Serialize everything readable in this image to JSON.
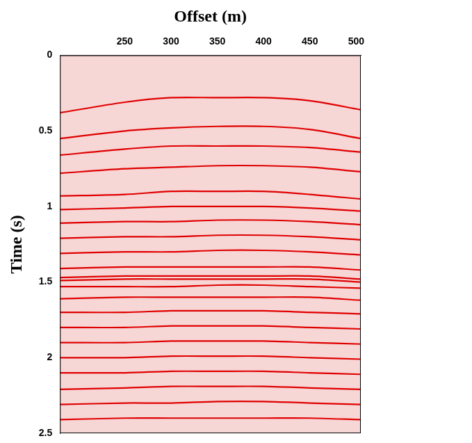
{
  "chart_data": {
    "type": "line",
    "x_label": "Offset (m)",
    "y_label": "Time (s)",
    "x": [
      180,
      250,
      300,
      350,
      400,
      450,
      505
    ],
    "xlim": [
      180,
      505
    ],
    "xticks": [
      250,
      300,
      350,
      400,
      450,
      500
    ],
    "ylim": [
      0,
      2.5
    ],
    "yticks": [
      0,
      0.5,
      1,
      1.5,
      2,
      2.5
    ],
    "color": "#e00000",
    "grid": false,
    "series": [
      {
        "values": [
          0.38,
          0.31,
          0.28,
          0.28,
          0.28,
          0.3,
          0.36
        ]
      },
      {
        "values": [
          0.55,
          0.5,
          0.48,
          0.47,
          0.47,
          0.49,
          0.55
        ]
      },
      {
        "values": [
          0.66,
          0.62,
          0.6,
          0.6,
          0.6,
          0.61,
          0.64
        ]
      },
      {
        "values": [
          0.78,
          0.75,
          0.74,
          0.73,
          0.73,
          0.74,
          0.77
        ]
      },
      {
        "values": [
          0.93,
          0.92,
          0.9,
          0.9,
          0.9,
          0.92,
          0.95
        ]
      },
      {
        "values": [
          1.02,
          1.01,
          1.0,
          1.0,
          1.0,
          1.01,
          1.03
        ]
      },
      {
        "values": [
          1.11,
          1.1,
          1.1,
          1.09,
          1.09,
          1.1,
          1.12
        ]
      },
      {
        "values": [
          1.21,
          1.2,
          1.2,
          1.19,
          1.19,
          1.2,
          1.22
        ]
      },
      {
        "values": [
          1.31,
          1.3,
          1.3,
          1.29,
          1.29,
          1.3,
          1.32
        ]
      },
      {
        "values": [
          1.41,
          1.4,
          1.4,
          1.4,
          1.4,
          1.4,
          1.42
        ]
      },
      {
        "values": [
          1.47,
          1.46,
          1.46,
          1.46,
          1.46,
          1.46,
          1.48
        ]
      },
      {
        "values": [
          1.49,
          1.48,
          1.48,
          1.48,
          1.48,
          1.48,
          1.5
        ]
      },
      {
        "values": [
          1.53,
          1.53,
          1.53,
          1.52,
          1.52,
          1.53,
          1.54
        ]
      },
      {
        "values": [
          1.61,
          1.6,
          1.6,
          1.6,
          1.6,
          1.6,
          1.62
        ]
      },
      {
        "values": [
          1.7,
          1.7,
          1.69,
          1.69,
          1.69,
          1.7,
          1.71
        ]
      },
      {
        "values": [
          1.8,
          1.8,
          1.79,
          1.79,
          1.79,
          1.8,
          1.81
        ]
      },
      {
        "values": [
          1.9,
          1.9,
          1.89,
          1.89,
          1.89,
          1.9,
          1.91
        ]
      },
      {
        "values": [
          2.0,
          2.0,
          1.99,
          1.99,
          1.99,
          2.0,
          2.01
        ]
      },
      {
        "values": [
          2.1,
          2.1,
          2.09,
          2.09,
          2.09,
          2.1,
          2.11
        ]
      },
      {
        "values": [
          2.21,
          2.2,
          2.19,
          2.19,
          2.19,
          2.2,
          2.21
        ]
      },
      {
        "values": [
          2.31,
          2.3,
          2.3,
          2.29,
          2.29,
          2.3,
          2.31
        ]
      },
      {
        "values": [
          2.41,
          2.4,
          2.4,
          2.4,
          2.4,
          2.4,
          2.41
        ]
      }
    ]
  }
}
